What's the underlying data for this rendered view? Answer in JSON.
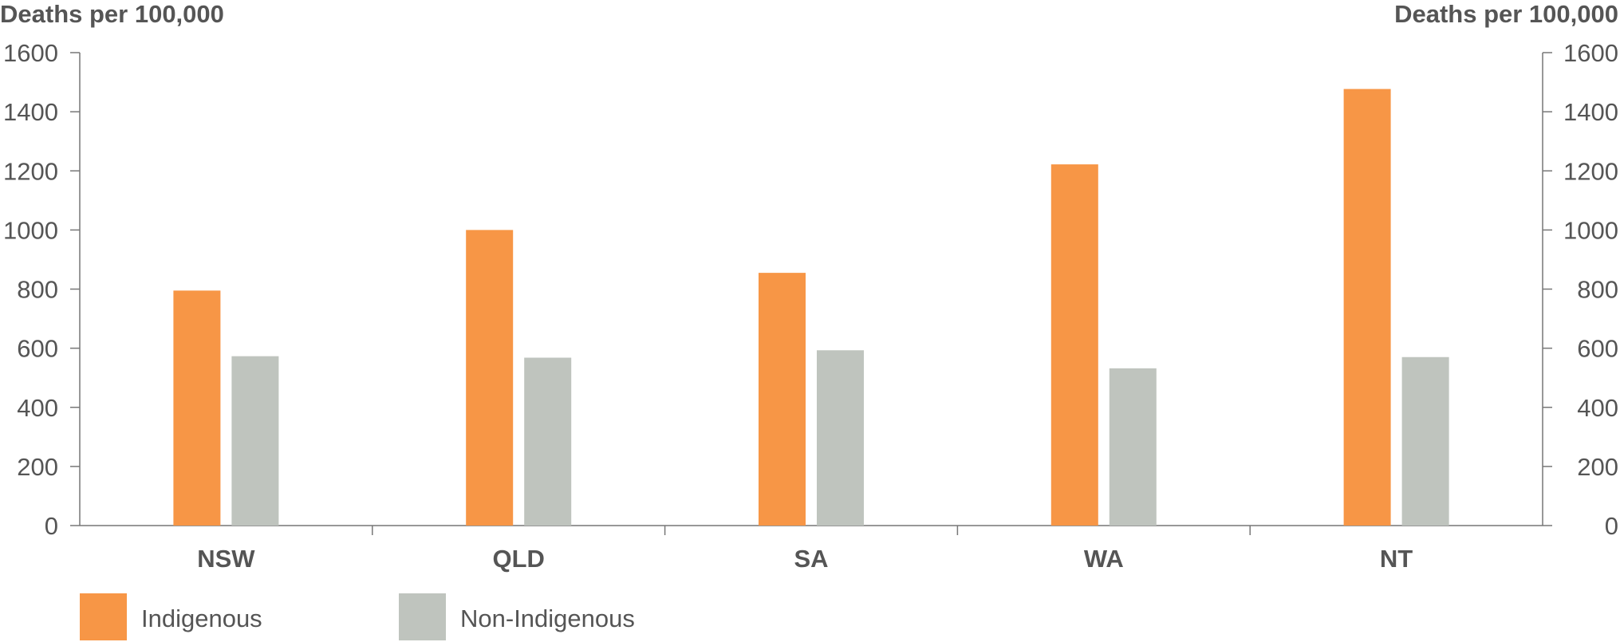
{
  "chart_data": {
    "type": "bar",
    "left_axis_label": "Deaths per 100,000",
    "right_axis_label": "Deaths per 100,000",
    "ylim": [
      0,
      1600
    ],
    "yticks": [
      "0",
      "200",
      "400",
      "600",
      "800",
      "1000",
      "1200",
      "1400",
      "1600"
    ],
    "categories": [
      "NSW",
      "QLD",
      "SA",
      "WA",
      "NT"
    ],
    "series": [
      {
        "name": "Indigenous",
        "color": "#F79646",
        "values": [
          795,
          1000,
          855,
          1222,
          1477
        ]
      },
      {
        "name": "Non-Indigenous",
        "color": "#BFC4BE",
        "values": [
          573,
          568,
          593,
          532,
          570
        ]
      }
    ],
    "legend_position": "bottom-left",
    "grid": false
  }
}
